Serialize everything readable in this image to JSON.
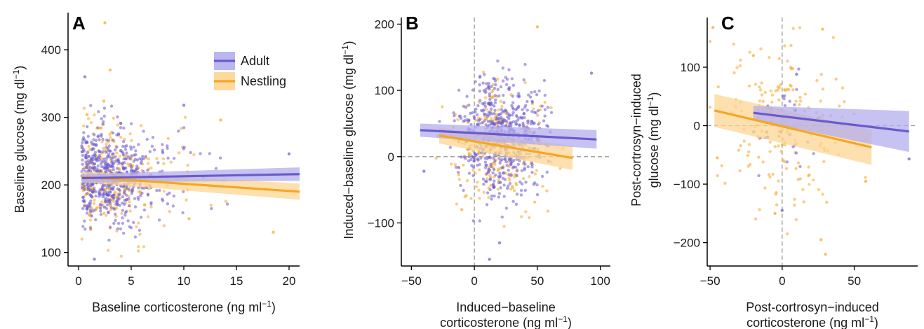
{
  "colors": {
    "adult": "#6a5acd",
    "nestling": "#f5a623",
    "adult_band": "#b3aeee",
    "nestling_band": "#fcd593",
    "axis": "#000000",
    "ref_line": "#999999"
  },
  "legend": {
    "items": [
      {
        "series": "adult",
        "label": "Adult"
      },
      {
        "series": "nestling",
        "label": "Nestling"
      }
    ]
  },
  "chart_data": [
    {
      "id": "A",
      "type": "scatter",
      "panel_label": "A",
      "xlabel_lines": [
        "Baseline corticosterone (ng ml",
        "−1",
        ")"
      ],
      "ylabel_lines": [
        "Baseline glucose (mg dl",
        "−1",
        ")"
      ],
      "xlim": [
        -1,
        21
      ],
      "ylim": [
        80,
        455
      ],
      "xticks": [
        0,
        5,
        10,
        15,
        20
      ],
      "yticks": [
        100,
        200,
        300,
        400
      ],
      "ref_lines": false,
      "points": {
        "adult": {
          "n": 600,
          "xmean": 3.2,
          "xsd": 2.6,
          "xmin": 0.3,
          "xmax": 20.5,
          "ymean": 215,
          "ysd": 35,
          "seed": 11
        },
        "nestling": {
          "n": 260,
          "xmean": 3.0,
          "xsd": 2.8,
          "xmin": 0.3,
          "xmax": 20.5,
          "ymean": 205,
          "ysd": 38,
          "seed": 23
        }
      },
      "outliers": {
        "adult": [
          [
            0.6,
            360
          ],
          [
            1.5,
            90
          ],
          [
            10,
            318
          ],
          [
            20,
            246
          ],
          [
            8,
            248
          ]
        ],
        "nestling": [
          [
            2.5,
            440
          ],
          [
            3,
            370
          ],
          [
            2.4,
            324
          ],
          [
            13.5,
            296
          ],
          [
            18.5,
            130
          ],
          [
            0.8,
            304
          ],
          [
            10.5,
            150
          ]
        ]
      },
      "fits": {
        "adult": {
          "x": [
            0.3,
            21
          ],
          "y": [
            210,
            216
          ],
          "band": [
            6,
            10
          ]
        },
        "nestling": {
          "x": [
            0.3,
            21
          ],
          "y": [
            212,
            190
          ],
          "band": [
            8,
            12
          ]
        }
      }
    },
    {
      "id": "B",
      "type": "scatter",
      "panel_label": "B",
      "xlabel_lines": [
        "Induced−baseline",
        "corticosterone (ng ml",
        "−1",
        ")"
      ],
      "ylabel_lines": [
        "Induced−baseline glucose (mg dl",
        "−1",
        ")"
      ],
      "xlim": [
        -58,
        108
      ],
      "ylim": [
        -165,
        210
      ],
      "xticks": [
        -50,
        0,
        50,
        100
      ],
      "yticks": [
        -100,
        0,
        100,
        200
      ],
      "ref_lines": true,
      "points": {
        "adult": {
          "n": 560,
          "xmean": 22,
          "xsd": 16,
          "xmin": -45,
          "xmax": 97,
          "ymean": 35,
          "ysd": 45,
          "seed": 37
        },
        "nestling": {
          "n": 240,
          "xmean": 18,
          "xsd": 20,
          "xmin": -45,
          "xmax": 97,
          "ymean": 15,
          "ysd": 42,
          "seed": 41
        }
      },
      "outliers": {
        "adult": [
          [
            12,
            -155
          ],
          [
            20,
            -130
          ],
          [
            93,
            126
          ],
          [
            -40,
            -22
          ]
        ],
        "nestling": [
          [
            50,
            196
          ],
          [
            -10,
            -80
          ]
        ]
      },
      "fits": {
        "adult": {
          "x": [
            -43,
            97
          ],
          "y": [
            40,
            26
          ],
          "band": [
            10,
            14
          ]
        },
        "nestling": {
          "x": [
            -28,
            78
          ],
          "y": [
            32,
            -2
          ],
          "band": [
            12,
            18
          ]
        }
      }
    },
    {
      "id": "C",
      "type": "scatter",
      "panel_label": "C",
      "xlabel_lines": [
        "Post-cortrosyn−induced",
        "corticosterone (ng ml",
        "−1",
        ")"
      ],
      "ylabel_lines": [
        "Post-cortrosyn−induced",
        "glucose (mg dl",
        "−1",
        ")"
      ],
      "xlim": [
        -52,
        94
      ],
      "ylim": [
        -240,
        185
      ],
      "xticks": [
        -50,
        0,
        50
      ],
      "yticks": [
        -200,
        -100,
        0,
        100
      ],
      "ref_lines": true,
      "points": {
        "adult": {
          "n": 40,
          "xmean": 2,
          "xsd": 14,
          "xmin": -20,
          "xmax": 90,
          "ymean": 10,
          "ysd": 40,
          "seed": 53
        },
        "nestling": {
          "n": 180,
          "xmean": 2,
          "xsd": 22,
          "xmin": -50,
          "xmax": 65,
          "ymean": -5,
          "ysd": 70,
          "seed": 59
        }
      },
      "outliers": {
        "adult": [
          [
            88,
            -57
          ],
          [
            0,
            -145
          ],
          [
            10,
            88
          ]
        ],
        "nestling": [
          [
            -48,
            168
          ],
          [
            28,
            165
          ],
          [
            -45,
            -55
          ],
          [
            30,
            -220
          ],
          [
            27,
            -195
          ],
          [
            -5,
            -150
          ],
          [
            58,
            -95
          ],
          [
            -20,
            120
          ]
        ]
      },
      "fits": {
        "adult": {
          "x": [
            -20,
            88
          ],
          "y": [
            22,
            -10
          ],
          "band": [
            12,
            35
          ]
        },
        "nestling": {
          "x": [
            -47,
            62
          ],
          "y": [
            26,
            -37
          ],
          "band": [
            28,
            30
          ]
        }
      }
    }
  ]
}
